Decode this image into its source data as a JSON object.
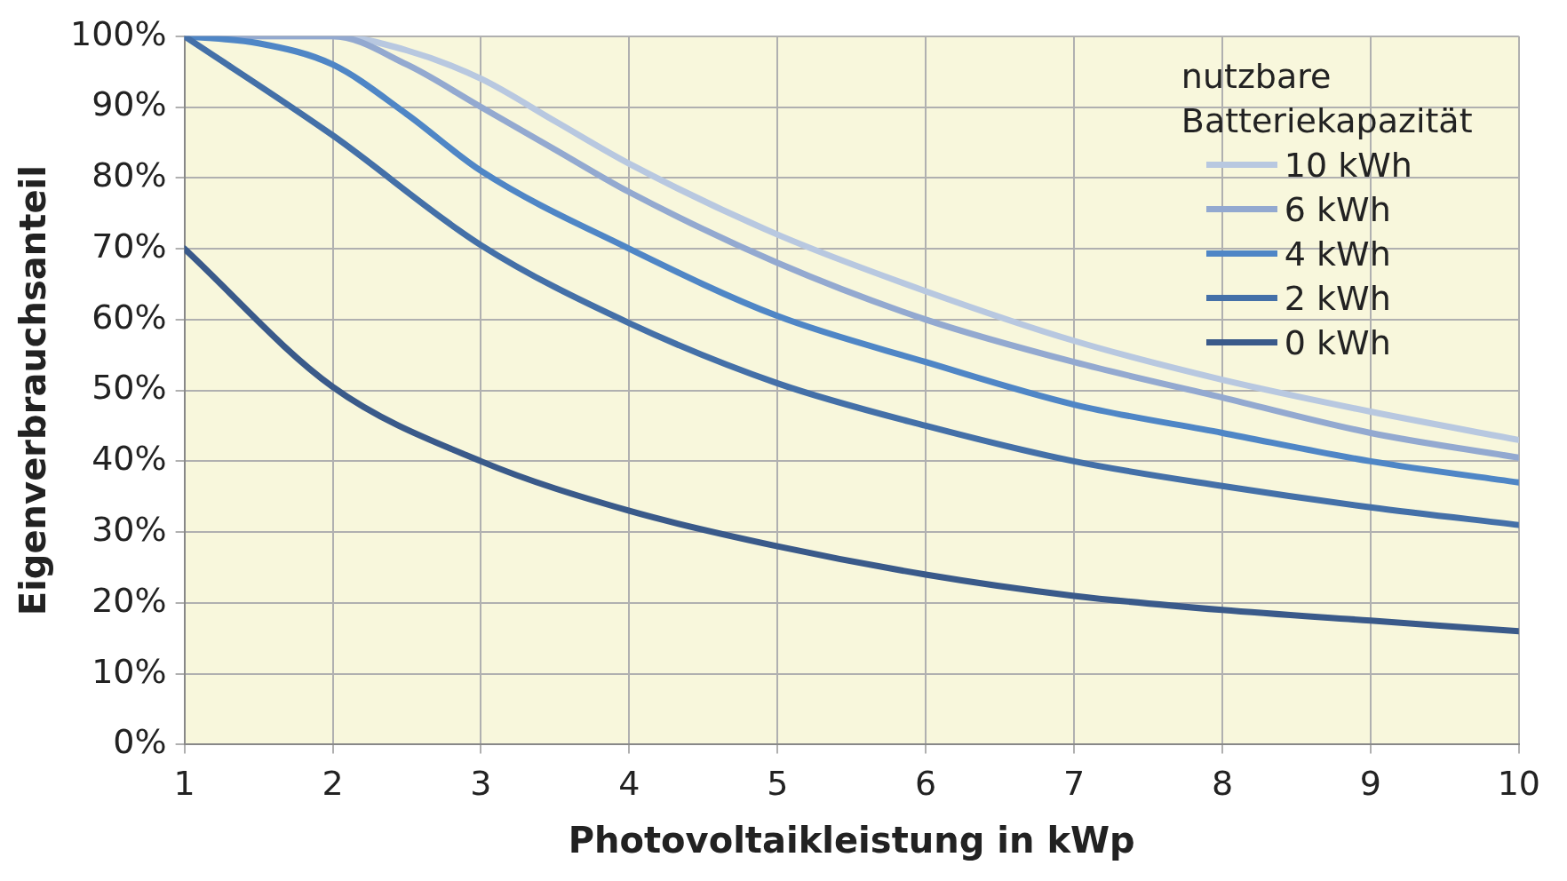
{
  "chart_data": {
    "type": "line",
    "xlabel": "Photovoltaikleistung in kWp",
    "ylabel": "Eigenverbrauchsanteil",
    "legend_title": "nutzbare Batteriekapazität",
    "legend": "top right",
    "grid": true,
    "xlim": [
      1,
      10
    ],
    "xticks": [
      1,
      2,
      3,
      4,
      5,
      6,
      7,
      8,
      9,
      10
    ],
    "ylim": [
      0,
      100
    ],
    "yticks": [
      {
        "value": 0,
        "label": "0%"
      },
      {
        "value": 10,
        "label": "10%"
      },
      {
        "value": 20,
        "label": "20%"
      },
      {
        "value": 30,
        "label": "30%"
      },
      {
        "value": 40,
        "label": "40%"
      },
      {
        "value": 50,
        "label": "50%"
      },
      {
        "value": 60,
        "label": "60%"
      },
      {
        "value": 70,
        "label": "70%"
      },
      {
        "value": 80,
        "label": "80%"
      },
      {
        "value": 90,
        "label": "90%"
      },
      {
        "value": 100,
        "label": "100%"
      }
    ],
    "marker": "none",
    "line_style": "solid",
    "series": [
      {
        "name": "10 kWh",
        "color": "#b8c8e0",
        "x": [
          1,
          2,
          2.5,
          3,
          3.5,
          4,
          5,
          6,
          7,
          8,
          9,
          10
        ],
        "values": [
          100,
          100,
          98,
          94,
          88,
          82,
          72,
          64,
          57,
          51.5,
          47,
          43
        ]
      },
      {
        "name": "6 kWh",
        "color": "#93a9d0",
        "x": [
          1,
          2,
          2.5,
          3,
          3.5,
          4,
          5,
          6,
          7,
          8,
          9,
          10
        ],
        "values": [
          100,
          100,
          96,
          90,
          84,
          78,
          68,
          60,
          54,
          49,
          44,
          40.5
        ]
      },
      {
        "name": "4 kWh",
        "color": "#4f86c6",
        "x": [
          1,
          1.5,
          2,
          2.5,
          3,
          4,
          5,
          6,
          7,
          8,
          9,
          10
        ],
        "values": [
          100,
          99,
          96,
          89,
          81,
          70,
          60.5,
          54,
          48,
          44,
          40,
          37
        ]
      },
      {
        "name": "2 kWh",
        "color": "#4470a8",
        "x": [
          1,
          2,
          3,
          4,
          5,
          6,
          7,
          8,
          9,
          10
        ],
        "values": [
          100,
          86,
          70.5,
          59.5,
          51,
          45,
          40,
          36.5,
          33.5,
          31
        ]
      },
      {
        "name": "0 kWh",
        "color": "#3a5a8a",
        "x": [
          1,
          2,
          3,
          4,
          5,
          6,
          7,
          8,
          9,
          10
        ],
        "values": [
          70,
          50.5,
          40,
          33,
          28,
          24,
          21,
          19,
          17.5,
          16
        ]
      }
    ]
  }
}
